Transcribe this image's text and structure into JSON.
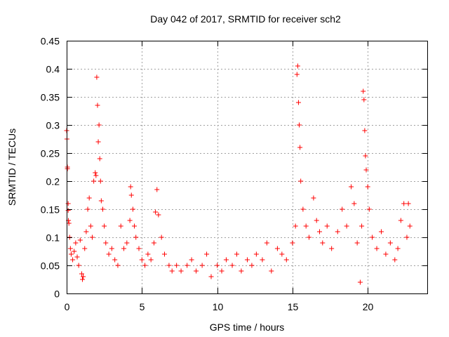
{
  "chart_data": {
    "type": "scatter",
    "title": "Day 042 of 2017, SRMTID for receiver sch2",
    "xlabel": "GPS time / hours",
    "ylabel": "SRMTID / TECUs",
    "xlim": [
      0,
      24
    ],
    "ylim": [
      0,
      0.45
    ],
    "x_ticks": [
      0,
      5,
      10,
      15,
      20
    ],
    "y_ticks": [
      0,
      0.05,
      0.1,
      0.15,
      0.2,
      0.25,
      0.3,
      0.35,
      0.4,
      0.45
    ],
    "x_tick_labels": [
      "0",
      "5",
      "10",
      "15",
      "20"
    ],
    "y_tick_labels": [
      "0",
      "0.05",
      "0.1",
      "0.15",
      "0.2",
      "0.25",
      "0.3",
      "0.35",
      "0.4",
      "0.45"
    ],
    "grid": true,
    "marker": "+",
    "color": "#ff0000",
    "series": [
      {
        "name": "SRMTID",
        "points": [
          [
            0.0,
            0.29
          ],
          [
            0.02,
            0.275
          ],
          [
            0.05,
            0.225
          ],
          [
            0.05,
            0.222
          ],
          [
            0.1,
            0.16
          ],
          [
            0.1,
            0.148
          ],
          [
            0.12,
            0.13
          ],
          [
            0.15,
            0.125
          ],
          [
            0.2,
            0.1
          ],
          [
            0.25,
            0.08
          ],
          [
            0.3,
            0.07
          ],
          [
            0.4,
            0.06
          ],
          [
            0.5,
            0.075
          ],
          [
            0.6,
            0.09
          ],
          [
            0.7,
            0.065
          ],
          [
            0.8,
            0.05
          ],
          [
            0.9,
            0.095
          ],
          [
            1.0,
            0.035
          ],
          [
            1.05,
            0.025
          ],
          [
            1.1,
            0.03
          ],
          [
            1.2,
            0.08
          ],
          [
            1.3,
            0.11
          ],
          [
            1.4,
            0.15
          ],
          [
            1.5,
            0.17
          ],
          [
            1.6,
            0.12
          ],
          [
            1.7,
            0.1
          ],
          [
            1.8,
            0.2
          ],
          [
            1.9,
            0.215
          ],
          [
            1.95,
            0.21
          ],
          [
            2.0,
            0.385
          ],
          [
            2.05,
            0.335
          ],
          [
            2.1,
            0.27
          ],
          [
            2.15,
            0.3
          ],
          [
            2.2,
            0.24
          ],
          [
            2.25,
            0.2
          ],
          [
            2.3,
            0.165
          ],
          [
            2.4,
            0.15
          ],
          [
            2.5,
            0.12
          ],
          [
            2.6,
            0.09
          ],
          [
            2.8,
            0.07
          ],
          [
            3.0,
            0.08
          ],
          [
            3.2,
            0.06
          ],
          [
            3.4,
            0.05
          ],
          [
            3.6,
            0.12
          ],
          [
            3.8,
            0.08
          ],
          [
            4.0,
            0.09
          ],
          [
            4.2,
            0.13
          ],
          [
            4.25,
            0.19
          ],
          [
            4.3,
            0.175
          ],
          [
            4.4,
            0.15
          ],
          [
            4.5,
            0.12
          ],
          [
            4.6,
            0.1
          ],
          [
            4.8,
            0.08
          ],
          [
            5.0,
            0.06
          ],
          [
            5.2,
            0.05
          ],
          [
            5.4,
            0.07
          ],
          [
            5.6,
            0.06
          ],
          [
            5.8,
            0.09
          ],
          [
            5.9,
            0.145
          ],
          [
            6.0,
            0.185
          ],
          [
            6.1,
            0.14
          ],
          [
            6.3,
            0.1
          ],
          [
            6.5,
            0.07
          ],
          [
            6.8,
            0.05
          ],
          [
            7.0,
            0.04
          ],
          [
            7.3,
            0.05
          ],
          [
            7.6,
            0.04
          ],
          [
            8.0,
            0.05
          ],
          [
            8.3,
            0.06
          ],
          [
            8.6,
            0.04
          ],
          [
            9.0,
            0.05
          ],
          [
            9.3,
            0.07
          ],
          [
            9.6,
            0.03
          ],
          [
            10.0,
            0.05
          ],
          [
            10.3,
            0.04
          ],
          [
            10.6,
            0.06
          ],
          [
            11.0,
            0.05
          ],
          [
            11.3,
            0.07
          ],
          [
            11.6,
            0.04
          ],
          [
            12.0,
            0.06
          ],
          [
            12.3,
            0.05
          ],
          [
            12.6,
            0.07
          ],
          [
            13.0,
            0.06
          ],
          [
            13.3,
            0.09
          ],
          [
            13.6,
            0.04
          ],
          [
            14.0,
            0.08
          ],
          [
            14.3,
            0.07
          ],
          [
            14.6,
            0.06
          ],
          [
            15.0,
            0.09
          ],
          [
            15.2,
            0.12
          ],
          [
            15.3,
            0.39
          ],
          [
            15.35,
            0.405
          ],
          [
            15.4,
            0.34
          ],
          [
            15.45,
            0.3
          ],
          [
            15.5,
            0.26
          ],
          [
            15.55,
            0.2
          ],
          [
            15.7,
            0.15
          ],
          [
            15.9,
            0.12
          ],
          [
            16.1,
            0.1
          ],
          [
            16.4,
            0.17
          ],
          [
            16.6,
            0.13
          ],
          [
            16.8,
            0.11
          ],
          [
            17.0,
            0.09
          ],
          [
            17.3,
            0.12
          ],
          [
            17.6,
            0.08
          ],
          [
            18.0,
            0.11
          ],
          [
            18.3,
            0.15
          ],
          [
            18.6,
            0.12
          ],
          [
            18.9,
            0.19
          ],
          [
            19.1,
            0.16
          ],
          [
            19.3,
            0.09
          ],
          [
            19.5,
            0.02
          ],
          [
            19.6,
            0.12
          ],
          [
            19.7,
            0.36
          ],
          [
            19.75,
            0.345
          ],
          [
            19.8,
            0.29
          ],
          [
            19.85,
            0.245
          ],
          [
            19.9,
            0.22
          ],
          [
            20.0,
            0.19
          ],
          [
            20.1,
            0.15
          ],
          [
            20.3,
            0.1
          ],
          [
            20.6,
            0.08
          ],
          [
            20.9,
            0.11
          ],
          [
            21.2,
            0.07
          ],
          [
            21.5,
            0.09
          ],
          [
            21.8,
            0.06
          ],
          [
            22.0,
            0.08
          ],
          [
            22.2,
            0.13
          ],
          [
            22.4,
            0.16
          ],
          [
            22.6,
            0.1
          ],
          [
            22.7,
            0.16
          ],
          [
            22.8,
            0.12
          ]
        ]
      }
    ]
  }
}
